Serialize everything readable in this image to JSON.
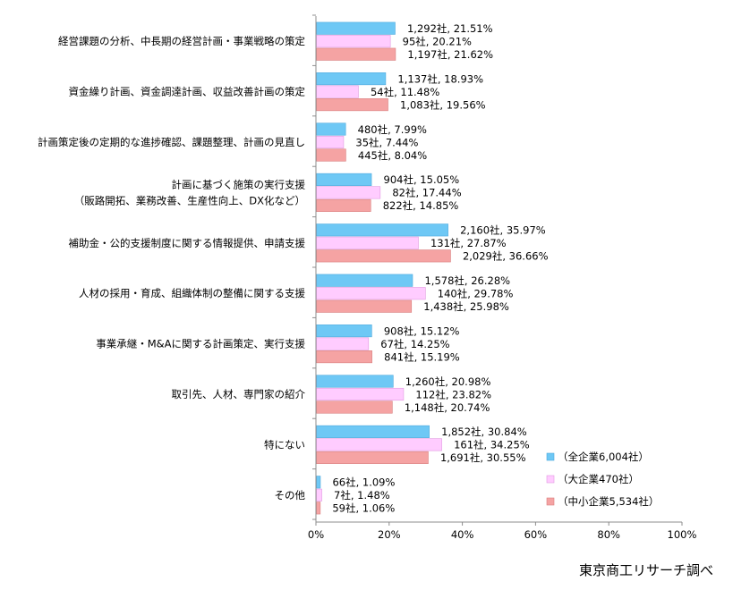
{
  "source_credit": "東京商工リサーチ調べ",
  "colors": {
    "all": "#6EC8F5",
    "all_stroke": "#4FA9DD",
    "large": "#FFCCFF",
    "large_stroke": "#E19AE1",
    "sme": "#F5A3A3",
    "sme_stroke": "#D97F7F",
    "axis": "#8C8C8C",
    "text": "#000000"
  },
  "chart_data": {
    "type": "bar",
    "orientation": "horizontal",
    "title": "",
    "xlabel": "",
    "ylabel": "",
    "xlim": [
      0,
      100
    ],
    "x_ticks": [
      "0%",
      "20%",
      "40%",
      "60%",
      "80%",
      "100%"
    ],
    "x_tick_values": [
      0,
      20,
      40,
      60,
      80,
      100
    ],
    "grid": false,
    "legend_position": "bottom-right",
    "categories": [
      [
        "経営課題の分析、中長期の経営計画・事業戦略の策定"
      ],
      [
        "資金繰り計画、資金調達計画、収益改善計画の策定"
      ],
      [
        "計画策定後の定期的な進捗確認、課題整理、計画の見直し"
      ],
      [
        "計画に基づく施策の実行支援",
        "（販路開拓、業務改善、生産性向上、DX化など）"
      ],
      [
        "補助金・公的支援制度に関する情報提供、申請支援"
      ],
      [
        "人材の採用・育成、組織体制の整備に関する支援"
      ],
      [
        "事業承継・M&Aに関する計画策定、実行支援"
      ],
      [
        "取引先、人材、専門家の紹介"
      ],
      [
        "特にない"
      ],
      [
        "その他"
      ]
    ],
    "series": [
      {
        "name": "（全企業6,004社）",
        "color_key": "all",
        "values": [
          21.51,
          18.93,
          7.99,
          15.05,
          35.97,
          26.28,
          15.12,
          20.98,
          30.84,
          1.09
        ],
        "labels": [
          "1,292社, 21.51%",
          "1,137社, 18.93%",
          "480社, 7.99%",
          "904社, 15.05%",
          "2,160社, 35.97%",
          "1,578社, 26.28%",
          "908社, 15.12%",
          "1,260社, 20.98%",
          "1,852社, 30.84%",
          "66社, 1.09%"
        ]
      },
      {
        "name": "（大企業470社）",
        "color_key": "large",
        "values": [
          20.21,
          11.48,
          7.44,
          17.44,
          27.87,
          29.78,
          14.25,
          23.82,
          34.25,
          1.48
        ],
        "labels": [
          "95社, 20.21%",
          "54社, 11.48%",
          "35社, 7.44%",
          "82社, 17.44%",
          "131社, 27.87%",
          "140社, 29.78%",
          "67社, 14.25%",
          "112社, 23.82%",
          "161社, 34.25%",
          "7社, 1.48%"
        ]
      },
      {
        "name": "（中小企業5,534社）",
        "color_key": "sme",
        "values": [
          21.62,
          19.56,
          8.04,
          14.85,
          36.66,
          25.98,
          15.19,
          20.74,
          30.55,
          1.06
        ],
        "labels": [
          "1,197社, 21.62%",
          "1,083社, 19.56%",
          "445社, 8.04%",
          "822社, 14.85%",
          "2,029社, 36.66%",
          "1,438社, 25.98%",
          "841社, 15.19%",
          "1,148社, 20.74%",
          "1,691社, 30.55%",
          "59社, 1.06%"
        ]
      }
    ]
  }
}
